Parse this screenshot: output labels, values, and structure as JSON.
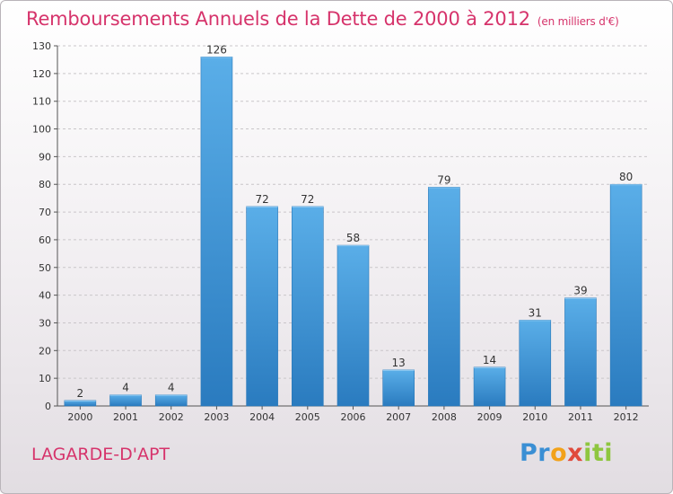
{
  "chart_data": {
    "type": "bar",
    "title": "Remboursements Annuels de la Dette de 2000 à 2012",
    "unit_note": "(en milliers d'€)",
    "categories": [
      "2000",
      "2001",
      "2002",
      "2003",
      "2004",
      "2005",
      "2006",
      "2007",
      "2008",
      "2009",
      "2010",
      "2011",
      "2012"
    ],
    "values": [
      2,
      4,
      4,
      126,
      72,
      72,
      58,
      13,
      79,
      14,
      31,
      39,
      80
    ],
    "ylim": [
      0,
      130
    ],
    "yticks": [
      0,
      10,
      20,
      30,
      40,
      50,
      60,
      70,
      80,
      90,
      100,
      110,
      120,
      130
    ],
    "grid": true,
    "bar_color_top": "#5aaee8",
    "bar_color_bottom": "#2a7bbf"
  },
  "footer": {
    "commune": "LAGARDE-D'APT",
    "logo_text": "Proxiti"
  },
  "colors": {
    "title": "#d6336b"
  }
}
